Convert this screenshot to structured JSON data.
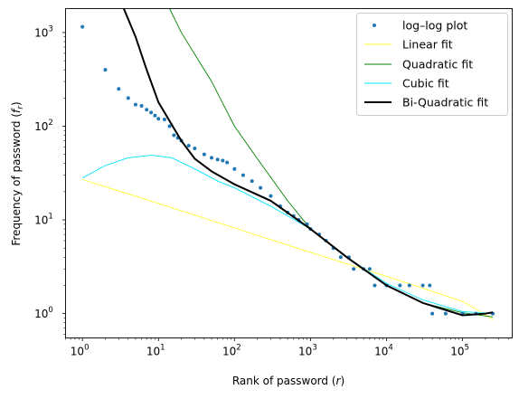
{
  "chart_data": {
    "type": "scatter",
    "title": "",
    "xlabel_main": "Rank of password (",
    "xlabel_var": "r",
    "xlabel_end": ")",
    "ylabel_main": "Frequency of password (",
    "ylabel_var": "f",
    "ylabel_sub": "r",
    "ylabel_end": ")",
    "xscale": "log",
    "yscale": "log",
    "xlim": [
      0.6,
      450000
    ],
    "ylim": [
      0.55,
      1800
    ],
    "x_ticks": [
      {
        "value": 1,
        "base": "10",
        "exp": "0"
      },
      {
        "value": 10,
        "base": "10",
        "exp": "1"
      },
      {
        "value": 100,
        "base": "10",
        "exp": "2"
      },
      {
        "value": 1000,
        "base": "10",
        "exp": "3"
      },
      {
        "value": 10000,
        "base": "10",
        "exp": "4"
      },
      {
        "value": 100000,
        "base": "10",
        "exp": "5"
      }
    ],
    "y_ticks": [
      {
        "value": 1,
        "base": "10",
        "exp": "0"
      },
      {
        "value": 10,
        "base": "10",
        "exp": "1"
      },
      {
        "value": 100,
        "base": "10",
        "exp": "2"
      },
      {
        "value": 1000,
        "base": "10",
        "exp": "3"
      }
    ],
    "grid": false,
    "legend_position": "top-right",
    "scatter_series": {
      "name": "log–log plot",
      "color": "#1f77b4",
      "points": [
        [
          1,
          1150
        ],
        [
          2,
          400
        ],
        [
          3,
          250
        ],
        [
          4,
          200
        ],
        [
          5,
          170
        ],
        [
          6,
          165
        ],
        [
          7,
          150
        ],
        [
          8,
          140
        ],
        [
          9,
          130
        ],
        [
          10,
          120
        ],
        [
          12,
          118
        ],
        [
          14,
          100
        ],
        [
          16,
          80
        ],
        [
          18,
          75
        ],
        [
          20,
          70
        ],
        [
          25,
          62
        ],
        [
          30,
          58
        ],
        [
          40,
          50
        ],
        [
          50,
          46
        ],
        [
          60,
          44
        ],
        [
          70,
          43
        ],
        [
          80,
          41
        ],
        [
          100,
          35
        ],
        [
          130,
          30
        ],
        [
          170,
          26
        ],
        [
          220,
          22
        ],
        [
          300,
          18
        ],
        [
          400,
          14
        ],
        [
          500,
          12
        ],
        [
          600,
          11
        ],
        [
          700,
          10
        ],
        [
          900,
          9
        ],
        [
          1000,
          8
        ],
        [
          1300,
          7
        ],
        [
          1600,
          6
        ],
        [
          2000,
          5
        ],
        [
          2500,
          4
        ],
        [
          3200,
          4
        ],
        [
          3700,
          3
        ],
        [
          5000,
          3
        ],
        [
          6000,
          3
        ],
        [
          7000,
          2
        ],
        [
          10000,
          2
        ],
        [
          15000,
          2
        ],
        [
          20000,
          2
        ],
        [
          30000,
          2
        ],
        [
          37000,
          2
        ],
        [
          40000,
          1
        ],
        [
          60000,
          1
        ],
        [
          100000,
          1
        ],
        [
          150000,
          1
        ],
        [
          250000,
          1
        ]
      ]
    },
    "line_series": [
      {
        "name": "Linear fit",
        "color": "#ffff33",
        "width": 0.9,
        "points": [
          [
            1,
            27
          ],
          [
            10,
            15
          ],
          [
            100,
            8.2
          ],
          [
            1000,
            4.5
          ],
          [
            10000,
            2.5
          ],
          [
            100000,
            1.35
          ],
          [
            250000,
            0.87
          ]
        ]
      },
      {
        "name": "Quadratic fit",
        "color": "#008000",
        "width": 0.9,
        "points": [
          [
            14,
            1800
          ],
          [
            20,
            1000
          ],
          [
            50,
            300
          ],
          [
            100,
            100
          ],
          [
            200,
            45
          ],
          [
            500,
            16
          ],
          [
            1000,
            8
          ],
          [
            3000,
            4
          ],
          [
            10000,
            2
          ],
          [
            30000,
            1.3
          ],
          [
            100000,
            1.02
          ],
          [
            250000,
            0.92
          ]
        ]
      },
      {
        "name": "Cubic fit",
        "color": "#00e5ff",
        "width": 0.9,
        "points": [
          [
            1,
            28
          ],
          [
            2,
            38
          ],
          [
            4,
            46
          ],
          [
            8,
            49
          ],
          [
            15,
            46
          ],
          [
            30,
            35
          ],
          [
            60,
            26
          ],
          [
            100,
            22
          ],
          [
            300,
            14
          ],
          [
            1000,
            8
          ],
          [
            3000,
            4
          ],
          [
            10000,
            2.1
          ],
          [
            30000,
            1.4
          ],
          [
            100000,
            1.05
          ],
          [
            250000,
            1.0
          ]
        ]
      },
      {
        "name": "Bi-Quadratic fit",
        "color": "#000000",
        "width": 2,
        "points": [
          [
            3.5,
            1800
          ],
          [
            5,
            900
          ],
          [
            7,
            400
          ],
          [
            10,
            180
          ],
          [
            20,
            70
          ],
          [
            30,
            45
          ],
          [
            50,
            33
          ],
          [
            100,
            24
          ],
          [
            300,
            16
          ],
          [
            1000,
            8
          ],
          [
            3000,
            4
          ],
          [
            10000,
            2
          ],
          [
            30000,
            1.3
          ],
          [
            100000,
            0.96
          ],
          [
            200000,
            1.0
          ],
          [
            250000,
            1.03
          ]
        ]
      }
    ]
  }
}
